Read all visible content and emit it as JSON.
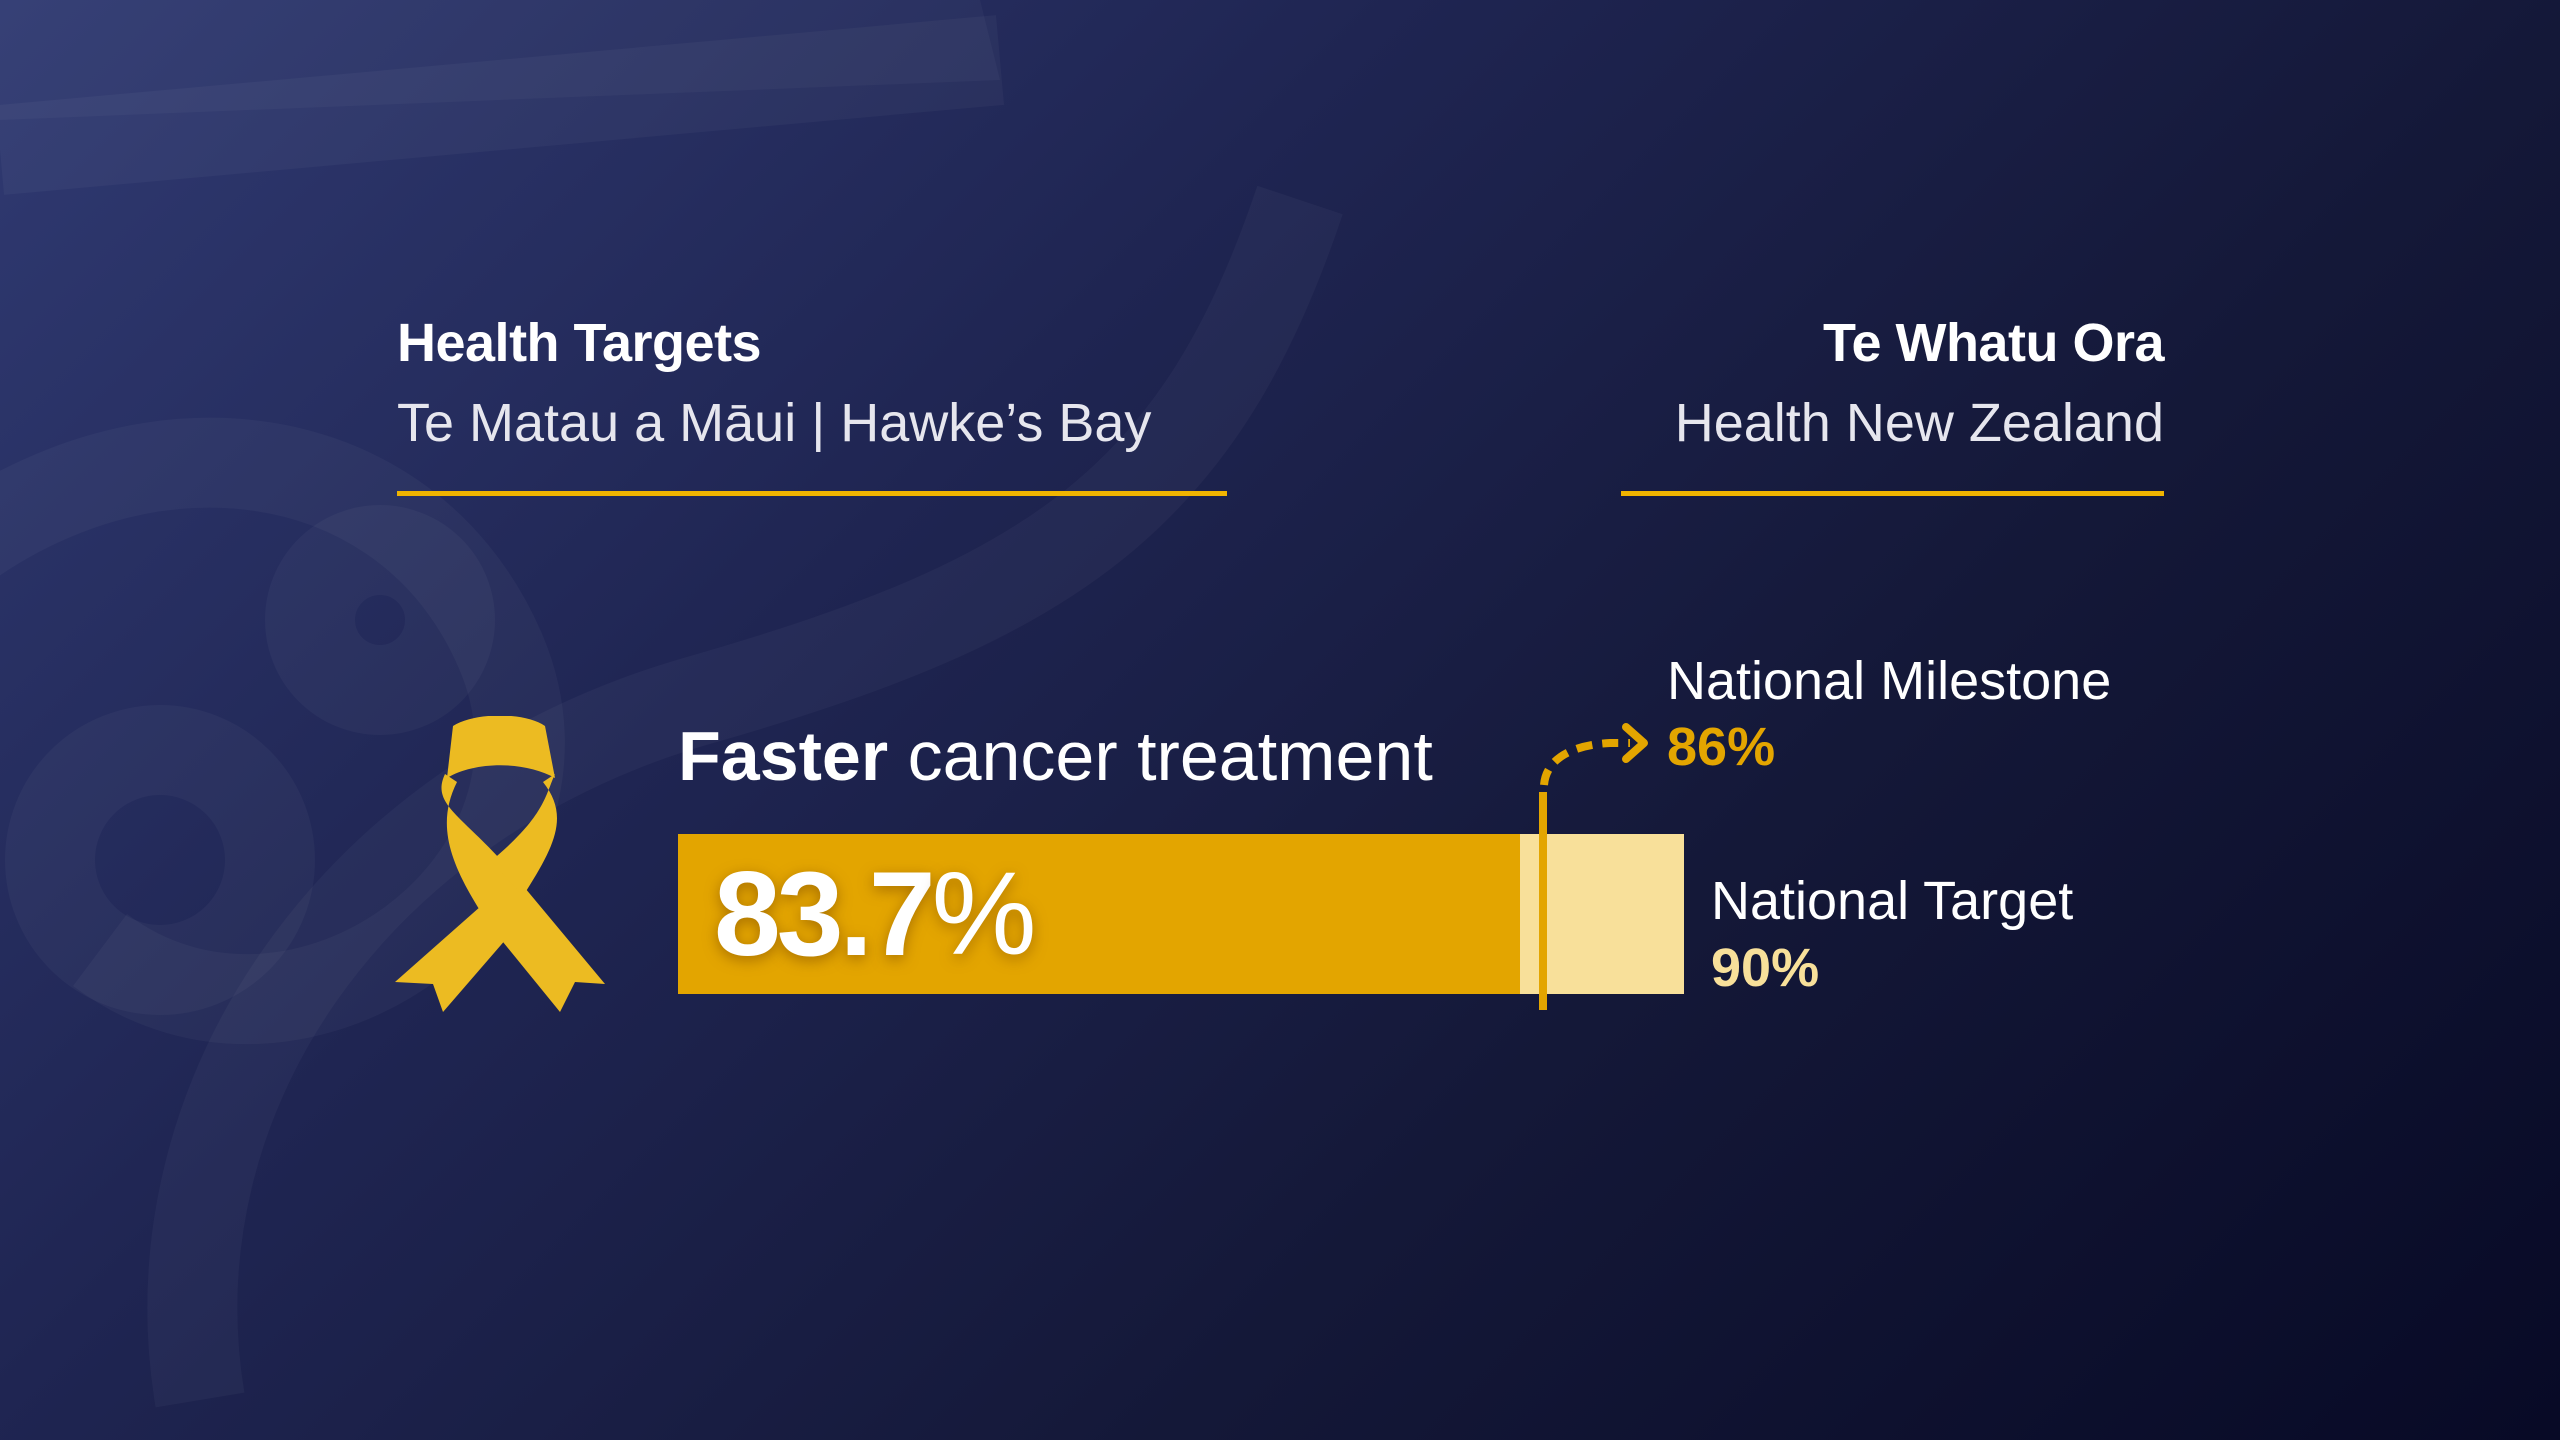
{
  "header_left": {
    "title": "Health Targets",
    "subtitle": "Te Matau a Māui | Hawke’s Bay"
  },
  "header_right": {
    "title": "Te Whatu Ora",
    "subtitle": "Health New Zealand"
  },
  "metric": {
    "title_bold": "Faster",
    "title_rest": "cancer treatment",
    "icon": "awareness-ribbon-icon",
    "value_number": "83.7",
    "value_unit": "%",
    "value": 83.7,
    "milestone": {
      "label": "National Milestone",
      "value_text": "86%",
      "value": 86
    },
    "target": {
      "label": "National Target",
      "value_text": "90%",
      "value": 90
    }
  },
  "colors": {
    "accent": "#f0b400",
    "bar_fill": "#e3a500",
    "bar_track": "#f8e09a",
    "milestone_text": "#e3a500",
    "target_text": "#f8e09a",
    "background_dark": "#080a26",
    "background_light": "#303a72"
  }
}
